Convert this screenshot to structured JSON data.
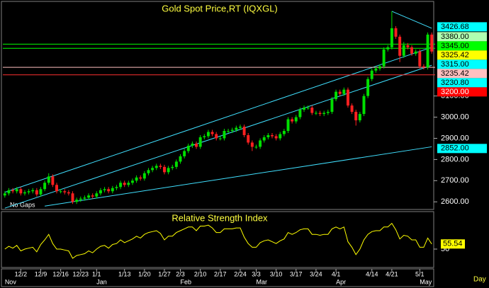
{
  "chart_data": [
    {
      "type": "candlestick",
      "title": "Gold Spot Price,RT (IQXGL)",
      "note": "No Gaps",
      "categories": [
        null,
        null,
        null,
        null,
        "12/2",
        null,
        null,
        null,
        null,
        "12/9",
        null,
        null,
        null,
        null,
        "12/16",
        null,
        null,
        null,
        null,
        "12/23",
        null,
        null,
        null,
        "1/1",
        null,
        null,
        null,
        null,
        null,
        null,
        "1/13",
        null,
        null,
        null,
        null,
        "1/20",
        null,
        null,
        null,
        null,
        "1/27",
        null,
        null,
        null,
        "2/3",
        null,
        null,
        null,
        null,
        "2/10",
        null,
        null,
        null,
        null,
        "2/17",
        null,
        null,
        null,
        null,
        "2/24",
        null,
        null,
        null,
        "3/3",
        null,
        null,
        null,
        null,
        "3/10",
        null,
        null,
        null,
        null,
        "3/17",
        null,
        null,
        null,
        null,
        "3/24",
        null,
        null,
        null,
        null,
        "4/1",
        null,
        null,
        null,
        null,
        null,
        null,
        null,
        null,
        "4/14",
        null,
        null,
        null,
        null,
        "4/21",
        null,
        null,
        null,
        null,
        null,
        null,
        "5/1",
        null,
        null,
        null
      ],
      "months": [
        "Nov",
        null,
        null,
        null,
        null,
        null,
        null,
        null,
        null,
        null,
        null,
        null,
        null,
        null,
        null,
        null,
        null,
        null,
        null,
        null,
        null,
        null,
        null,
        "Jan",
        null,
        null,
        null,
        null,
        null,
        null,
        null,
        null,
        null,
        null,
        null,
        null,
        null,
        null,
        null,
        null,
        null,
        null,
        null,
        null,
        "Feb",
        null,
        null,
        null,
        null,
        null,
        null,
        null,
        null,
        null,
        null,
        null,
        null,
        null,
        null,
        null,
        null,
        null,
        null,
        "Mar",
        null,
        null,
        null,
        null,
        null,
        null,
        null,
        null,
        null,
        null,
        null,
        null,
        null,
        null,
        null,
        null,
        null,
        null,
        null,
        "Apr",
        null,
        null,
        null,
        null,
        null,
        null,
        null,
        null,
        null,
        null,
        null,
        null,
        null,
        null,
        null,
        null,
        null,
        null,
        null,
        null,
        "May",
        null,
        null,
        null
      ],
      "x_unit": "Day",
      "open": [
        2630,
        2640,
        2655,
        2650,
        2660,
        2640,
        2645,
        2650,
        2655,
        2635,
        2660,
        2690,
        2720,
        2680,
        2650,
        2650,
        2645,
        2640,
        2600,
        2610,
        2615,
        2620,
        2630,
        2625,
        2640,
        2655,
        2660,
        2650,
        2665,
        2670,
        2690,
        2680,
        2690,
        2700,
        2715,
        2710,
        2735,
        2750,
        2760,
        2770,
        2765,
        2740,
        2760,
        2765,
        2790,
        2815,
        2840,
        2865,
        2875,
        2860,
        2905,
        2910,
        2930,
        2920,
        2900,
        2900,
        2935,
        2935,
        2940,
        2950,
        2955,
        2915,
        2880,
        2860,
        2860,
        2890,
        2905,
        2915,
        2910,
        2900,
        2920,
        2935,
        2990,
        2980,
        3000,
        3035,
        3045,
        3045,
        3020,
        3020,
        3015,
        3020,
        3025,
        3085,
        3120,
        3110,
        3130,
        3055,
        3025,
        2985,
        3015,
        3100,
        3180,
        3220,
        3230,
        3240,
        3320,
        3330,
        3420,
        3380,
        3290,
        3340,
        3330,
        3300,
        3310,
        3240,
        3235,
        3390
      ],
      "high": [
        2650,
        2665,
        2665,
        2670,
        2670,
        2655,
        2660,
        2665,
        2665,
        2670,
        2700,
        2735,
        2730,
        2690,
        2660,
        2660,
        2655,
        2650,
        2620,
        2625,
        2630,
        2640,
        2640,
        2650,
        2665,
        2670,
        2670,
        2675,
        2680,
        2700,
        2700,
        2700,
        2710,
        2725,
        2725,
        2745,
        2760,
        2770,
        2780,
        2780,
        2775,
        2770,
        2775,
        2800,
        2825,
        2850,
        2875,
        2885,
        2885,
        2915,
        2920,
        2940,
        2940,
        2930,
        2910,
        2945,
        2945,
        2950,
        2960,
        2965,
        2965,
        2925,
        2890,
        2870,
        2900,
        2915,
        2925,
        2925,
        2920,
        2930,
        2945,
        3000,
        3000,
        3010,
        3045,
        3055,
        3055,
        3055,
        3030,
        3030,
        3030,
        3035,
        3095,
        3130,
        3130,
        3140,
        3140,
        3065,
        3035,
        3025,
        3110,
        3190,
        3230,
        3240,
        3250,
        3330,
        3340,
        3500,
        3430,
        3390,
        3355,
        3350,
        3340,
        3320,
        3320,
        3250,
        3400,
        3400
      ],
      "low": [
        2620,
        2630,
        2640,
        2640,
        2630,
        2630,
        2635,
        2640,
        2625,
        2625,
        2650,
        2680,
        2670,
        2640,
        2640,
        2635,
        2630,
        2590,
        2590,
        2600,
        2605,
        2610,
        2615,
        2615,
        2630,
        2645,
        2640,
        2640,
        2655,
        2660,
        2670,
        2670,
        2680,
        2690,
        2700,
        2700,
        2725,
        2740,
        2750,
        2755,
        2730,
        2730,
        2750,
        2755,
        2780,
        2805,
        2830,
        2855,
        2850,
        2850,
        2895,
        2900,
        2910,
        2890,
        2890,
        2890,
        2925,
        2925,
        2930,
        2940,
        2905,
        2870,
        2840,
        2850,
        2850,
        2880,
        2895,
        2900,
        2890,
        2890,
        2910,
        2925,
        2970,
        2970,
        2990,
        3025,
        3035,
        3010,
        3010,
        3005,
        3005,
        3010,
        3015,
        3075,
        3100,
        3100,
        3045,
        3015,
        2960,
        2975,
        3005,
        3090,
        3170,
        3210,
        3220,
        3230,
        3310,
        3320,
        3370,
        3260,
        3280,
        3320,
        3290,
        3290,
        3230,
        3225,
        3225,
        3300
      ],
      "close": [
        2640,
        2655,
        2650,
        2660,
        2640,
        2645,
        2650,
        2655,
        2635,
        2660,
        2690,
        2720,
        2680,
        2650,
        2650,
        2645,
        2640,
        2600,
        2610,
        2615,
        2620,
        2630,
        2625,
        2640,
        2655,
        2660,
        2650,
        2665,
        2670,
        2690,
        2680,
        2690,
        2700,
        2715,
        2710,
        2735,
        2750,
        2760,
        2770,
        2765,
        2740,
        2760,
        2765,
        2790,
        2815,
        2840,
        2865,
        2875,
        2860,
        2905,
        2910,
        2930,
        2920,
        2900,
        2900,
        2935,
        2935,
        2940,
        2950,
        2955,
        2915,
        2880,
        2860,
        2860,
        2890,
        2905,
        2915,
        2910,
        2900,
        2920,
        2935,
        2990,
        2980,
        3000,
        3035,
        3045,
        3045,
        3020,
        3020,
        3015,
        3020,
        3025,
        3085,
        3120,
        3110,
        3130,
        3055,
        3025,
        2985,
        3015,
        3100,
        3180,
        3220,
        3230,
        3240,
        3320,
        3330,
        3420,
        3380,
        3290,
        3340,
        3330,
        3300,
        3310,
        3240,
        3235,
        3390,
        3310
      ],
      "up_color": "#00e000",
      "down_color": "#ff2020",
      "ylim": [
        2564,
        3540
      ],
      "yticks": [
        {
          "value": 3100,
          "label": "3100.00"
        },
        {
          "value": 3000,
          "label": "3000.00"
        },
        {
          "value": 2900,
          "label": "2900.00"
        },
        {
          "value": 2800,
          "label": "2800.00"
        },
        {
          "value": 2700,
          "label": "2700.00"
        },
        {
          "value": 2600,
          "label": "2600.00"
        }
      ],
      "levels": [
        {
          "value": 3426.68,
          "label": "3426.68",
          "color": "#00ffff"
        },
        {
          "value": 3380,
          "label": "3380.00",
          "color": "#b0ffb0"
        },
        {
          "value": 3345,
          "label": "3345.00",
          "color": "#00ff00",
          "line_color": "#00ff00"
        },
        {
          "value": 3325.42,
          "label": "3325.42",
          "color": "#ffff00",
          "line_color": "#00ff00"
        },
        {
          "value": 3315,
          "label": "3315.00",
          "color": "#00ffff"
        },
        {
          "value": 3235.42,
          "label": "3235.42",
          "color": "#ffc0c0",
          "line_color": "#ffc0c0"
        },
        {
          "value": 3230.8,
          "label": "3230.80",
          "color": "#00ffff"
        },
        {
          "value": 3200,
          "label": "3200.00",
          "color": "#ff0000",
          "line_color": "#ff3030"
        },
        {
          "value": 2852,
          "label": "2852.00",
          "color": "#00ffff"
        }
      ],
      "trend_lines": [
        {
          "color": "#40e0ff",
          "x": [
            0,
            107
          ],
          "values": [
            2645,
            3330
          ]
        },
        {
          "color": "#40e0ff",
          "x": [
            0,
            107
          ],
          "values": [
            2570,
            3245
          ]
        },
        {
          "color": "#40e0ff",
          "x": [
            10,
            107
          ],
          "values": [
            2580,
            2860
          ]
        },
        {
          "color": "#40e0ff",
          "x": [
            97,
            107
          ],
          "values": [
            3500,
            3420
          ]
        }
      ]
    },
    {
      "type": "line",
      "title": "Relative Strength Index",
      "color": "#ffff00",
      "values": [
        50,
        53,
        51,
        54,
        48,
        50,
        51,
        52,
        47,
        55,
        60,
        66,
        56,
        50,
        50,
        49,
        48,
        40,
        43,
        44,
        45,
        48,
        46,
        50,
        53,
        54,
        51,
        55,
        56,
        60,
        57,
        59,
        61,
        64,
        62,
        66,
        68,
        69,
        70,
        67,
        60,
        64,
        64,
        68,
        70,
        72,
        74,
        74,
        70,
        75,
        75,
        76,
        73,
        68,
        68,
        72,
        72,
        72,
        73,
        73,
        63,
        56,
        52,
        52,
        57,
        59,
        60,
        58,
        56,
        59,
        61,
        68,
        66,
        68,
        71,
        72,
        72,
        66,
        66,
        65,
        66,
        66,
        72,
        74,
        72,
        74,
        58,
        52,
        44,
        50,
        60,
        66,
        69,
        70,
        70,
        74,
        74,
        78,
        71,
        61,
        65,
        64,
        60,
        60,
        52,
        52,
        62,
        55.54
      ],
      "ylim": [
        30,
        90
      ],
      "yticks": [
        50
      ]
    }
  ]
}
